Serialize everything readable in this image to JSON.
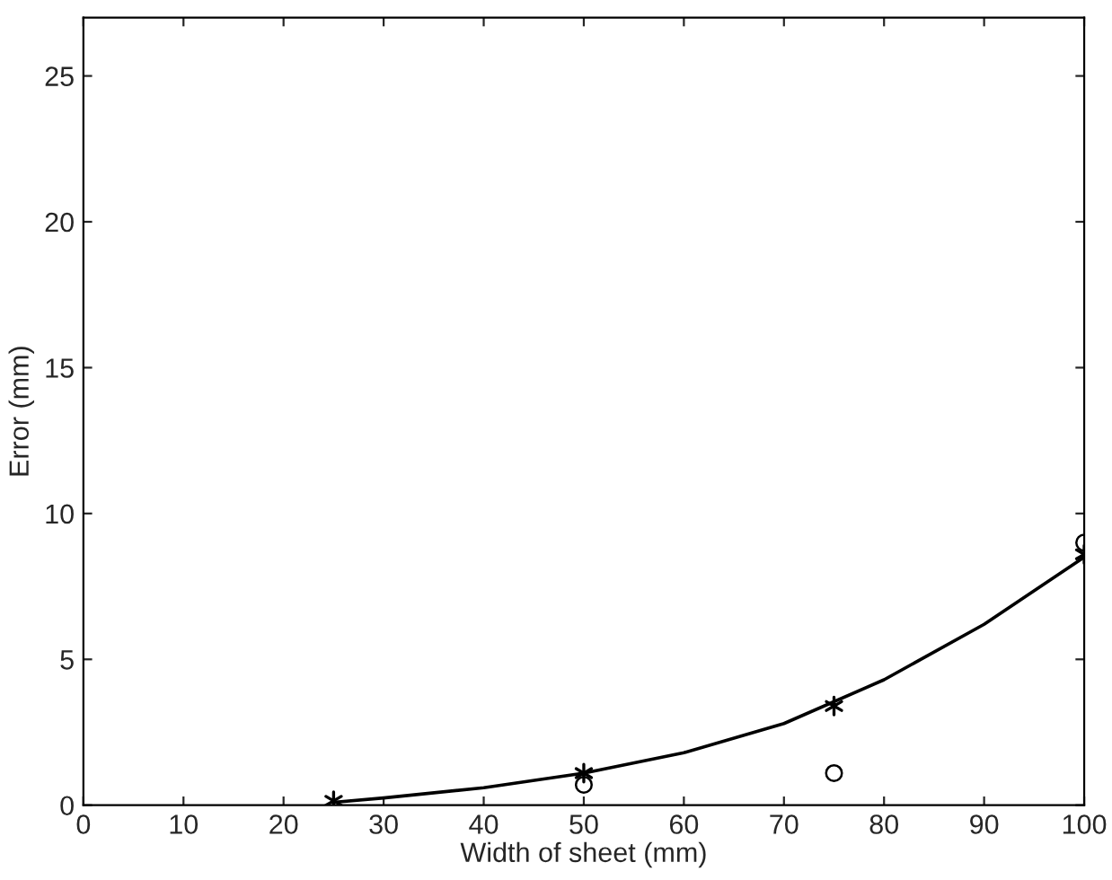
{
  "chart_data": {
    "type": "scatter",
    "xlabel": "Width of sheet (mm)",
    "ylabel": "Error (mm)",
    "xlim": [
      0,
      100
    ],
    "ylim": [
      0,
      27
    ],
    "xticks": [
      0,
      10,
      20,
      30,
      40,
      50,
      60,
      70,
      80,
      90,
      100
    ],
    "yticks": [
      0,
      5,
      10,
      15,
      20,
      25
    ],
    "grid": false,
    "legend": false,
    "series": [
      {
        "type": "line",
        "color": "#000000",
        "marker": "none",
        "line_style": "solid",
        "x": [
          25,
          30,
          40,
          50,
          60,
          70,
          80,
          90,
          100
        ],
        "values": [
          0.1,
          0.25,
          0.6,
          1.1,
          1.8,
          2.8,
          4.3,
          6.2,
          8.5
        ]
      },
      {
        "color": "#000000",
        "marker": "cross",
        "x": [
          25,
          50,
          75,
          100
        ],
        "values": [
          0.15,
          1.1,
          3.4,
          8.6
        ]
      },
      {
        "color": "#000000",
        "marker": "circle",
        "x": [
          50,
          75,
          100
        ],
        "values": [
          0.7,
          1.1,
          9.0
        ]
      }
    ]
  }
}
